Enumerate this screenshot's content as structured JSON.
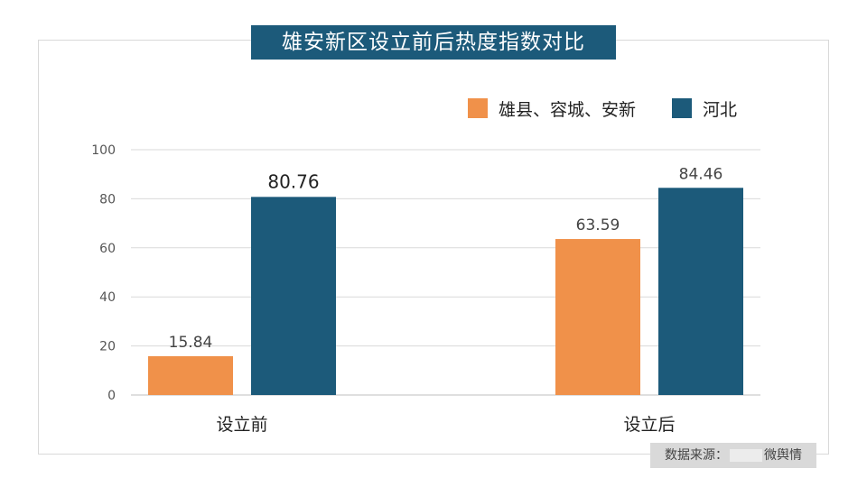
{
  "title": "雄安新区设立前后热度指数对比",
  "source": {
    "prefix": "数据来源：",
    "suffix": "微舆情"
  },
  "chart_data": {
    "type": "bar",
    "categories": [
      "设立前",
      "设立后"
    ],
    "series": [
      {
        "name": "雄县、容城、安新",
        "values": [
          15.84,
          63.59
        ],
        "color": "#f0914a"
      },
      {
        "name": "河北",
        "values": [
          80.76,
          84.46
        ],
        "color": "#1c5a7a"
      }
    ],
    "ylim": [
      0,
      100
    ],
    "yticks": [
      0,
      20,
      40,
      60,
      80,
      100
    ],
    "legend": "top-right",
    "grid": true
  }
}
